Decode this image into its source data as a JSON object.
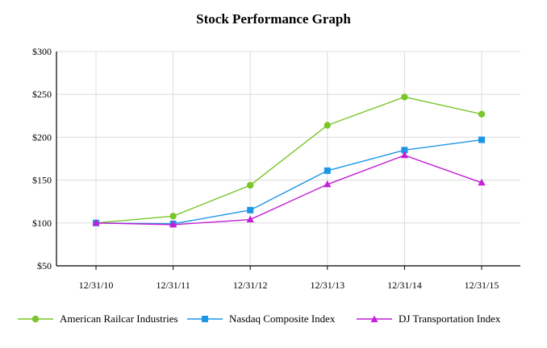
{
  "chart_data": {
    "type": "line",
    "title": "Stock Performance Graph",
    "categories": [
      "12/31/10",
      "12/31/11",
      "12/31/12",
      "12/31/13",
      "12/31/14",
      "12/31/15"
    ],
    "ylim": [
      50,
      300
    ],
    "yticks": [
      50,
      100,
      150,
      200,
      250,
      300
    ],
    "ytick_labels": [
      "$50",
      "$100",
      "$150",
      "$200",
      "$250",
      "$300"
    ],
    "grid": true,
    "legend_position": "bottom",
    "series": [
      {
        "name": "American Railcar Industries",
        "color": "#7ac62a",
        "marker": "circle",
        "values": [
          100,
          108,
          144,
          214,
          247,
          227
        ]
      },
      {
        "name": "Nasdaq Composite Index",
        "color": "#1e96e8",
        "marker": "square",
        "values": [
          100,
          99,
          115,
          161,
          185,
          197
        ]
      },
      {
        "name": "DJ Transportation Index",
        "color": "#c41ed6",
        "marker": "triangle",
        "values": [
          100,
          98,
          104,
          145,
          179,
          147
        ]
      }
    ]
  }
}
